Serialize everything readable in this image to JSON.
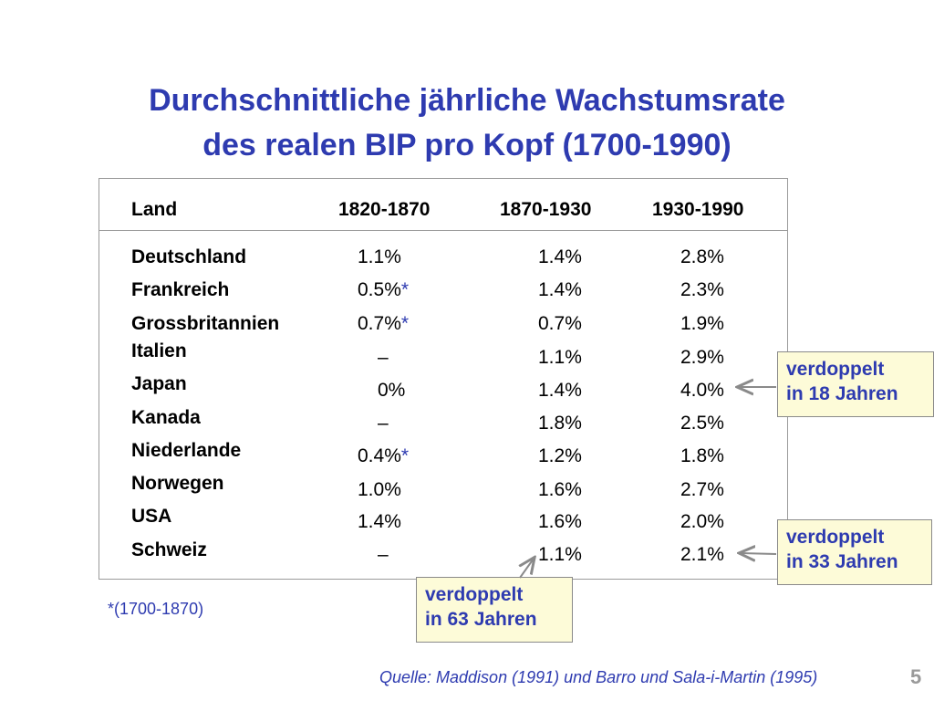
{
  "title": {
    "line1": "Durchschnittliche jährliche Wachstumsrate",
    "line2": "des realen BIP pro Kopf (1700-1990)"
  },
  "table": {
    "headers": [
      "Land",
      "1820-1870",
      "1870-1930",
      "1930-1990"
    ],
    "rows": [
      {
        "country": "Deutschland",
        "p1": "1.1%",
        "p1_star": "",
        "p2": "1.4%",
        "p3": "2.8%"
      },
      {
        "country": "Frankreich",
        "p1": "0.5%",
        "p1_star": "*",
        "p2": "1.4%",
        "p3": "2.3%"
      },
      {
        "country": "Grossbritannien",
        "p1": "0.7%",
        "p1_star": "*",
        "p2": "0.7%",
        "p3": "1.9%"
      },
      {
        "country": "Italien",
        "p1": "–",
        "p1_star": "",
        "p2": "1.1%",
        "p3": "2.9%"
      },
      {
        "country": "Japan",
        "p1": "0%",
        "p1_star": "",
        "p2": "1.4%",
        "p3": "4.0%"
      },
      {
        "country": "Kanada",
        "p1": "–",
        "p1_star": "",
        "p2": "1.8%",
        "p3": "2.5%"
      },
      {
        "country": "Niederlande",
        "p1": "0.4%",
        "p1_star": "*",
        "p2": "1.2%",
        "p3": "1.8%"
      },
      {
        "country": "Norwegen",
        "p1": "1.0%",
        "p1_star": "",
        "p2": "1.6%",
        "p3": "2.7%"
      },
      {
        "country": "USA",
        "p1": "1.4%",
        "p1_star": "",
        "p2": "1.6%",
        "p3": "2.0%"
      },
      {
        "country": "Schweiz",
        "p1": "–",
        "p1_star": "",
        "p2": "1.1%",
        "p3": "2.1%"
      }
    ]
  },
  "callouts": {
    "c18": {
      "line1": "verdoppelt",
      "line2": "in 18 Jahren"
    },
    "c33": {
      "line1": "verdoppelt",
      "line2": "in 33 Jahren"
    },
    "c63": {
      "line1": "verdoppelt",
      "line2": "in 63 Jahren"
    }
  },
  "footnote": "*(1700-1870)",
  "source": "Quelle: Maddison (1991) und Barro und Sala-i-Martin (1995)",
  "page_number": "5",
  "colors": {
    "title": "#2e3bb0",
    "callout_bg": "#fdfbd8",
    "border": "#9a9a9a"
  }
}
